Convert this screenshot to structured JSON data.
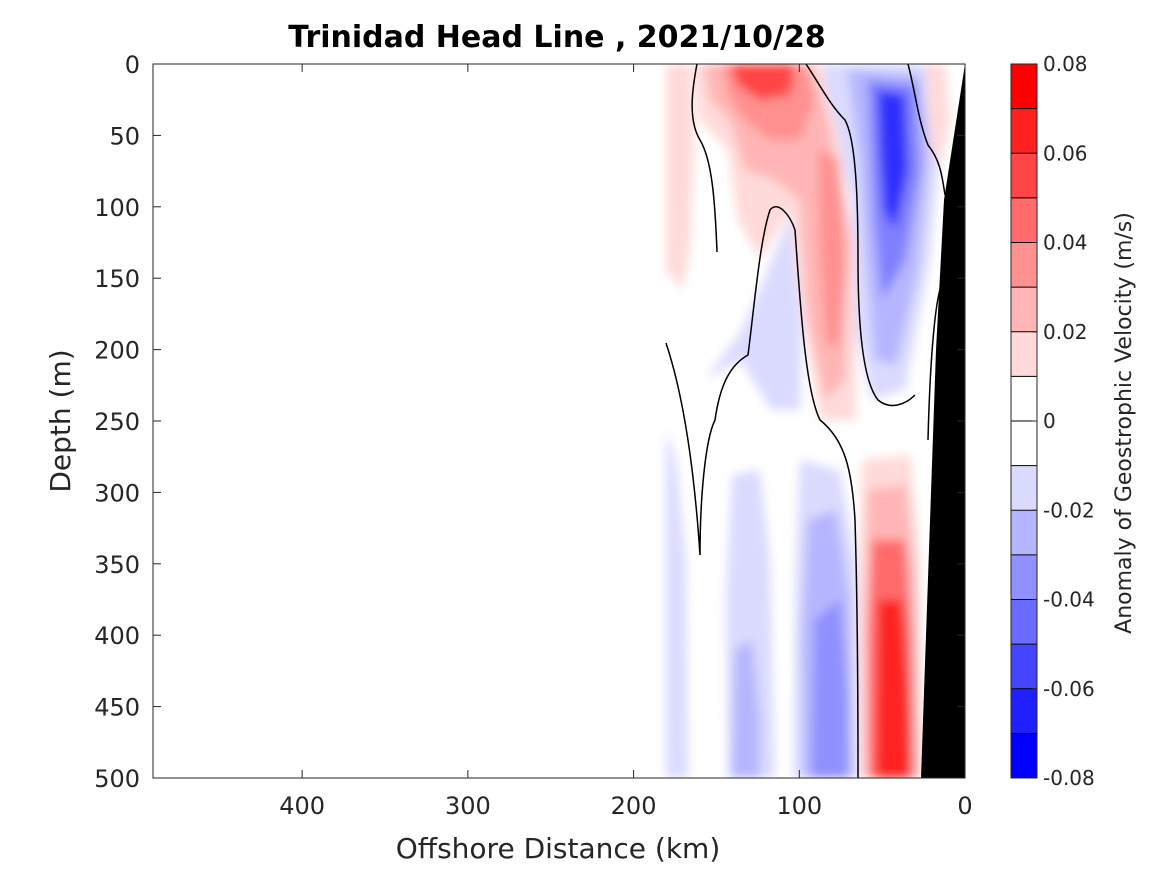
{
  "chart_data": {
    "type": "heatmap",
    "subtype": "filled-contour",
    "title": "Trinidad Head Line , 2021/10/28",
    "xlabel": "Offshore Distance (km)",
    "ylabel": "Depth (m)",
    "colorbar_label": "Anomaly of Geostrophic Velocity (m/s)",
    "x_reversed": true,
    "y_reversed": true,
    "xlim": [
      0,
      490
    ],
    "ylim": [
      0,
      500
    ],
    "x_ticks": [
      400,
      300,
      200,
      100,
      0
    ],
    "y_ticks": [
      0,
      50,
      100,
      150,
      200,
      250,
      300,
      350,
      400,
      450,
      500
    ],
    "x_tick_labels": [
      "400",
      "300",
      "200",
      "100",
      "0"
    ],
    "y_tick_labels": [
      "0",
      "50",
      "100",
      "150",
      "200",
      "250",
      "300",
      "350",
      "400",
      "450",
      "500"
    ],
    "clim": [
      -0.08,
      0.08
    ],
    "levels": [
      -0.08,
      -0.07,
      -0.06,
      -0.05,
      -0.04,
      -0.03,
      -0.02,
      -0.01,
      0,
      0.01,
      0.02,
      0.03,
      0.04,
      0.05,
      0.06,
      0.07,
      0.08
    ],
    "colorbar_tick_values": [
      0.08,
      0.06,
      0.04,
      0.02,
      0,
      -0.02,
      -0.04,
      -0.06,
      -0.08
    ],
    "colorbar_tick_labels": [
      "0.08",
      "0.06",
      "0.04",
      "0.02",
      "0",
      "-0.02",
      "-0.04",
      "-0.06",
      "-0.08"
    ],
    "colormap": [
      "#0000ff",
      "#2020ff",
      "#4545ff",
      "#6b6bff",
      "#9090ff",
      "#b5b5ff",
      "#dadaff",
      "#ffffff",
      "#ffffff",
      "#ffdada",
      "#ffb5b5",
      "#ff9090",
      "#ff6b6b",
      "#ff4545",
      "#ff2020",
      "#ff0000"
    ],
    "data_x_extent_km": [
      0,
      180
    ],
    "features": [
      {
        "label": "surface positive anomaly",
        "x_range": [
          105,
          155
        ],
        "depth_range": [
          0,
          60
        ],
        "peak": 0.045
      },
      {
        "label": "shelf-break positive core",
        "x_range": [
          70,
          95
        ],
        "depth_range": [
          90,
          230
        ],
        "peak": 0.045
      },
      {
        "label": "upper negative core",
        "x_range": [
          35,
          65
        ],
        "depth_range": [
          10,
          250
        ],
        "peak": -0.055
      },
      {
        "label": "deep positive core",
        "x_range": [
          25,
          65
        ],
        "depth_range": [
          280,
          500
        ],
        "peak": 0.075
      },
      {
        "label": "deep negative band",
        "x_range": [
          70,
          110
        ],
        "depth_range": [
          300,
          500
        ],
        "peak": -0.04
      }
    ],
    "bathymetry_color": "#000000"
  }
}
